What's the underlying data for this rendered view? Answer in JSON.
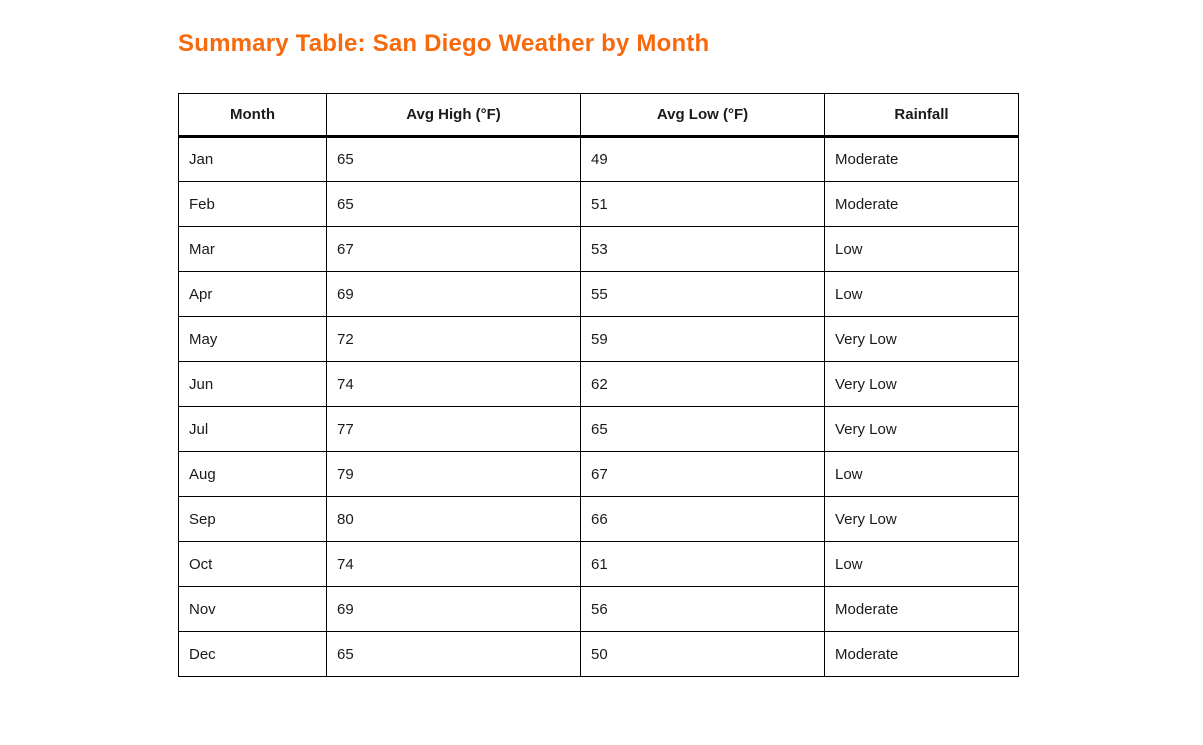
{
  "theme": {
    "accent_orange": "#F8690D",
    "border_black": "#000000",
    "text_dark": "#1A1A1A",
    "background": "#FFFFFF"
  },
  "title": {
    "text": "Summary Table: San Diego Weather by Month"
  },
  "table": {
    "columns": [
      {
        "label": "Month"
      },
      {
        "label": "Avg High (°F)"
      },
      {
        "label": "Avg Low (°F)"
      },
      {
        "label": "Rainfall"
      }
    ],
    "rows": [
      {
        "month": "Jan",
        "avg_high": "65",
        "avg_low": "49",
        "rainfall": "Moderate"
      },
      {
        "month": "Feb",
        "avg_high": "65",
        "avg_low": "51",
        "rainfall": "Moderate"
      },
      {
        "month": "Mar",
        "avg_high": "67",
        "avg_low": "53",
        "rainfall": "Low"
      },
      {
        "month": "Apr",
        "avg_high": "69",
        "avg_low": "55",
        "rainfall": "Low"
      },
      {
        "month": "May",
        "avg_high": "72",
        "avg_low": "59",
        "rainfall": "Very Low"
      },
      {
        "month": "Jun",
        "avg_high": "74",
        "avg_low": "62",
        "rainfall": "Very Low"
      },
      {
        "month": "Jul",
        "avg_high": "77",
        "avg_low": "65",
        "rainfall": "Very Low"
      },
      {
        "month": "Aug",
        "avg_high": "79",
        "avg_low": "67",
        "rainfall": "Low"
      },
      {
        "month": "Sep",
        "avg_high": "80",
        "avg_low": "66",
        "rainfall": "Very Low"
      },
      {
        "month": "Oct",
        "avg_high": "74",
        "avg_low": "61",
        "rainfall": "Low"
      },
      {
        "month": "Nov",
        "avg_high": "69",
        "avg_low": "56",
        "rainfall": "Moderate"
      },
      {
        "month": "Dec",
        "avg_high": "65",
        "avg_low": "50",
        "rainfall": "Moderate"
      }
    ]
  },
  "chart_data": {
    "type": "table",
    "title": "Summary Table: San Diego Weather by Month",
    "columns": [
      "Month",
      "Avg High (°F)",
      "Avg Low (°F)",
      "Rainfall"
    ],
    "rows": [
      [
        "Jan",
        65,
        49,
        "Moderate"
      ],
      [
        "Feb",
        65,
        51,
        "Moderate"
      ],
      [
        "Mar",
        67,
        53,
        "Low"
      ],
      [
        "Apr",
        69,
        55,
        "Low"
      ],
      [
        "May",
        72,
        59,
        "Very Low"
      ],
      [
        "Jun",
        74,
        62,
        "Very Low"
      ],
      [
        "Jul",
        77,
        65,
        "Very Low"
      ],
      [
        "Aug",
        79,
        67,
        "Low"
      ],
      [
        "Sep",
        80,
        66,
        "Very Low"
      ],
      [
        "Oct",
        74,
        61,
        "Low"
      ],
      [
        "Nov",
        69,
        56,
        "Moderate"
      ],
      [
        "Dec",
        65,
        50,
        "Moderate"
      ]
    ]
  }
}
